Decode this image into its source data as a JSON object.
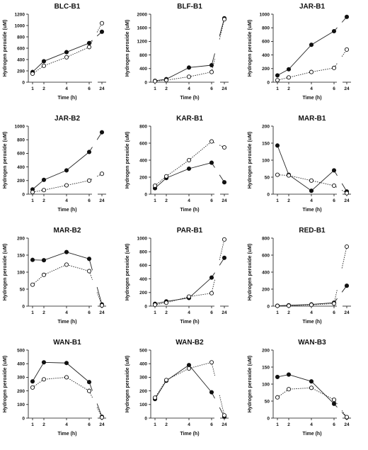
{
  "chart_data": [
    {
      "type": "line",
      "title": "BLC-B1",
      "xlabel": "Time (h)",
      "ylabel": "Hydrogen peroxide (uM)",
      "ylim": [
        0,
        1200
      ],
      "yticks": [
        0,
        200,
        400,
        600,
        800,
        1000,
        1200
      ],
      "x": [
        1,
        2,
        4,
        6,
        24
      ],
      "x_ticks": [
        "1",
        "2",
        "4",
        "6",
        "24"
      ],
      "series": [
        {
          "values": [
            180,
            370,
            530,
            690,
            890
          ],
          "style": "solid-filled"
        },
        {
          "values": [
            150,
            290,
            440,
            620,
            1040
          ],
          "style": "dotted-open"
        }
      ]
    },
    {
      "type": "line",
      "title": "BLF-B1",
      "xlabel": "Time (h)",
      "ylabel": "Hydrogen peroxide (uM)",
      "ylim": [
        0,
        2000
      ],
      "yticks": [
        0,
        400,
        800,
        1200,
        1600,
        2000
      ],
      "x": [
        1,
        2,
        4,
        6,
        24
      ],
      "x_ticks": [
        "1",
        "2",
        "4",
        "6",
        "24"
      ],
      "series": [
        {
          "values": [
            40,
            90,
            430,
            500,
            1880
          ],
          "style": "solid-filled"
        },
        {
          "values": [
            30,
            60,
            160,
            300,
            1850
          ],
          "style": "dotted-open"
        }
      ]
    },
    {
      "type": "line",
      "title": "JAR-B1",
      "xlabel": "Time (h)",
      "ylabel": "Hydrogen peroxide (uM)",
      "ylim": [
        0,
        1000
      ],
      "yticks": [
        0,
        200,
        400,
        600,
        800,
        1000
      ],
      "x": [
        1,
        2,
        4,
        6,
        24
      ],
      "x_ticks": [
        "1",
        "2",
        "4",
        "6",
        "24"
      ],
      "series": [
        {
          "values": [
            100,
            190,
            550,
            750,
            960
          ],
          "style": "solid-filled"
        },
        {
          "values": [
            30,
            70,
            150,
            210,
            480
          ],
          "style": "dotted-open"
        }
      ]
    },
    {
      "type": "line",
      "title": "JAR-B2",
      "xlabel": "Time (h)",
      "ylabel": "Hydrogen peroxide (uM)",
      "ylim": [
        0,
        1000
      ],
      "yticks": [
        0,
        200,
        400,
        600,
        800,
        1000
      ],
      "x": [
        1,
        2,
        4,
        6,
        24
      ],
      "x_ticks": [
        "1",
        "2",
        "4",
        "6",
        "24"
      ],
      "series": [
        {
          "values": [
            70,
            210,
            350,
            620,
            910
          ],
          "style": "solid-filled"
        },
        {
          "values": [
            30,
            60,
            130,
            200,
            300
          ],
          "style": "dotted-open"
        }
      ]
    },
    {
      "type": "line",
      "title": "KAR-B1",
      "xlabel": "Time (h)",
      "ylabel": "Hydrogen peroxide (uM)",
      "ylim": [
        0,
        800
      ],
      "yticks": [
        0,
        200,
        400,
        600,
        800
      ],
      "x": [
        1,
        2,
        4,
        6,
        24
      ],
      "x_ticks": [
        "1",
        "2",
        "4",
        "6",
        "24"
      ],
      "series": [
        {
          "values": [
            70,
            190,
            300,
            370,
            140
          ],
          "style": "solid-filled"
        },
        {
          "values": [
            100,
            210,
            400,
            620,
            550
          ],
          "style": "dotted-open"
        }
      ]
    },
    {
      "type": "line",
      "title": "MAR-B1",
      "xlabel": "Time (h)",
      "ylabel": "Hydrogen peroxide (uM)",
      "ylim": [
        0,
        200
      ],
      "yticks": [
        0,
        50,
        100,
        150,
        200
      ],
      "x": [
        1,
        2,
        4,
        6,
        24
      ],
      "x_ticks": [
        "1",
        "2",
        "4",
        "6",
        "24"
      ],
      "series": [
        {
          "values": [
            143,
            57,
            10,
            70,
            8
          ],
          "style": "solid-filled"
        },
        {
          "values": [
            57,
            55,
            40,
            25,
            3
          ],
          "style": "dotted-open"
        }
      ]
    },
    {
      "type": "line",
      "title": "MAR-B2",
      "xlabel": "Time (h)",
      "ylabel": "Hydrogen peroxide (uM)",
      "ylim": [
        0,
        200
      ],
      "yticks": [
        0,
        50,
        100,
        150,
        200
      ],
      "x": [
        1,
        2,
        4,
        6,
        24
      ],
      "x_ticks": [
        "1",
        "2",
        "4",
        "6",
        "24"
      ],
      "series": [
        {
          "values": [
            136,
            135,
            159,
            139,
            5
          ],
          "style": "solid-filled"
        },
        {
          "values": [
            63,
            92,
            122,
            103,
            2
          ],
          "style": "dotted-open"
        }
      ]
    },
    {
      "type": "line",
      "title": "PAR-B1",
      "xlabel": "Time (h)",
      "ylabel": "Hydrogen peroxide (uM)",
      "ylim": [
        0,
        1000
      ],
      "yticks": [
        0,
        200,
        400,
        600,
        800,
        1000
      ],
      "x": [
        1,
        2,
        4,
        6,
        24
      ],
      "x_ticks": [
        "1",
        "2",
        "4",
        "6",
        "24"
      ],
      "series": [
        {
          "values": [
            35,
            70,
            120,
            420,
            710
          ],
          "style": "solid-filled"
        },
        {
          "values": [
            20,
            50,
            140,
            190,
            980
          ],
          "style": "dotted-open"
        }
      ]
    },
    {
      "type": "line",
      "title": "RED-B1",
      "xlabel": "Time (h)",
      "ylabel": "Hydrogen peroxide (uM)",
      "ylim": [
        0,
        800
      ],
      "yticks": [
        0,
        200,
        400,
        600,
        800
      ],
      "x": [
        1,
        2,
        4,
        6,
        24
      ],
      "x_ticks": [
        "1",
        "2",
        "4",
        "6",
        "24"
      ],
      "series": [
        {
          "values": [
            5,
            10,
            20,
            40,
            240
          ],
          "style": "solid-filled"
        },
        {
          "values": [
            3,
            5,
            15,
            30,
            700
          ],
          "style": "dotted-open"
        }
      ]
    },
    {
      "type": "line",
      "title": "WAN-B1",
      "xlabel": "Time (h)",
      "ylabel": "Hydrogen peroxide (uM)",
      "ylim": [
        0,
        500
      ],
      "yticks": [
        0,
        100,
        200,
        300,
        400,
        500
      ],
      "x": [
        1,
        2,
        4,
        6,
        24
      ],
      "x_ticks": [
        "1",
        "2",
        "4",
        "6",
        "24"
      ],
      "series": [
        {
          "values": [
            270,
            410,
            405,
            265,
            10
          ],
          "style": "solid-filled"
        },
        {
          "values": [
            225,
            285,
            300,
            200,
            5
          ],
          "style": "dotted-open"
        }
      ]
    },
    {
      "type": "line",
      "title": "WAN-B2",
      "xlabel": "Time (h)",
      "ylabel": "Hydrogen peroxide (uM)",
      "ylim": [
        0,
        500
      ],
      "yticks": [
        0,
        100,
        200,
        300,
        400,
        500
      ],
      "x": [
        1,
        2,
        4,
        6,
        24
      ],
      "x_ticks": [
        "1",
        "2",
        "4",
        "6",
        "24"
      ],
      "series": [
        {
          "values": [
            140,
            275,
            390,
            190,
            10
          ],
          "style": "solid-filled"
        },
        {
          "values": [
            150,
            280,
            365,
            410,
            20
          ],
          "style": "dotted-open"
        }
      ]
    },
    {
      "type": "line",
      "title": "WAN-B3",
      "xlabel": "Time (h)",
      "ylabel": "Hydrogen peroxide (uM)",
      "ylim": [
        0,
        200
      ],
      "yticks": [
        0,
        50,
        100,
        150,
        200
      ],
      "x": [
        1,
        2,
        4,
        6,
        24
      ],
      "x_ticks": [
        "1",
        "2",
        "4",
        "6",
        "24"
      ],
      "series": [
        {
          "values": [
            121,
            128,
            108,
            42,
            2
          ],
          "style": "solid-filled"
        },
        {
          "values": [
            61,
            85,
            89,
            54,
            3
          ],
          "style": "dotted-open"
        }
      ]
    }
  ]
}
